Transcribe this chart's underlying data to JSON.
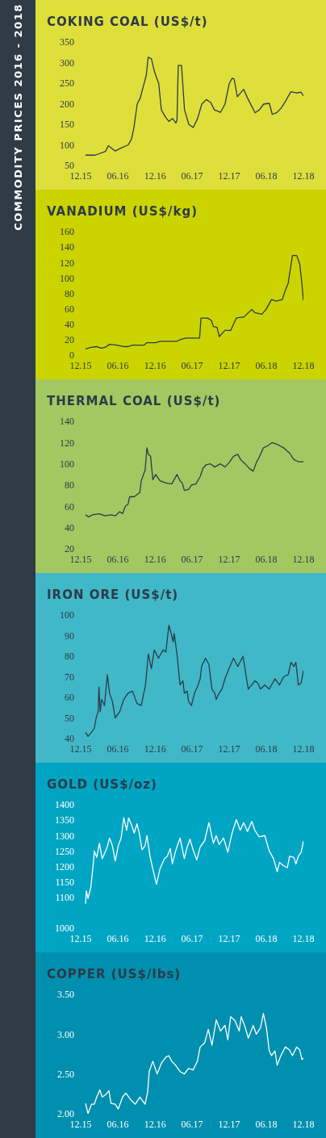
{
  "chart_data": [
    {
      "type": "other",
      "title": "COMMODITY PRICES 2016 - 2018"
    },
    {
      "type": "line",
      "title": "COKING COAL (US$/t)",
      "x": [
        "2015-12-25",
        "2016-02-10",
        "2016-04-01",
        "2016-04-15",
        "2016-05-19",
        "2016-06-10",
        "2016-07-22",
        "2016-08-07",
        "2016-08-19",
        "2016-09-04",
        "2016-09-19",
        "2016-10-04",
        "2016-10-19",
        "2016-10-28",
        "2016-11-13",
        "2016-11-28",
        "2016-12-19",
        "2017-01-01",
        "2017-01-22",
        "2017-02-07",
        "2017-02-25",
        "2017-03-13",
        "2017-03-19",
        "2017-03-25",
        "2017-04-10",
        "2017-04-25",
        "2017-05-16",
        "2017-06-07",
        "2017-06-28",
        "2017-07-19",
        "2017-08-10",
        "2017-09-01",
        "2017-09-19",
        "2017-10-19",
        "2017-11-10",
        "2017-12-01",
        "2017-12-16",
        "2017-12-25",
        "2018-01-10",
        "2018-02-10",
        "2018-03-01",
        "2018-04-07",
        "2018-04-28",
        "2018-05-19",
        "2018-06-16",
        "2018-07-01",
        "2018-07-22",
        "2018-08-13",
        "2018-09-04",
        "2018-09-16",
        "2018-10-01",
        "2018-10-28",
        "2018-11-19",
        "2018-12-01"
      ],
      "series": [
        {
          "color": "#2e3a48",
          "values": [
            75,
            75,
            84,
            98,
            85,
            91,
            100,
            114,
            142,
            199,
            214,
            242,
            270,
            313,
            309,
            278,
            249,
            185,
            167,
            157,
            164,
            153,
            160,
            293,
            293,
            185,
            150,
            142,
            164,
            199,
            210,
            203,
            185,
            179,
            199,
            249,
            262,
            260,
            217,
            235,
            214,
            178,
            185,
            199,
            201,
            174,
            178,
            189,
            206,
            217,
            229,
            226,
            228,
            219
          ]
        }
      ],
      "xlim": [
        "2015-12",
        "2018-12"
      ],
      "xticks": [
        {
          "value": "2015-12",
          "label": "12.15"
        },
        {
          "value": "2016-06",
          "label": "06.16"
        },
        {
          "value": "2016-12",
          "label": "12.16"
        },
        {
          "value": "2017-06",
          "label": "06.17"
        },
        {
          "value": "2017-12",
          "label": "12.17"
        },
        {
          "value": "2018-06",
          "label": "06.18"
        },
        {
          "value": "2018-12",
          "label": "12.18"
        }
      ],
      "ylim": [
        50,
        350
      ],
      "yticks": [
        50,
        100,
        150,
        200,
        250,
        300,
        350
      ]
    },
    {
      "type": "line",
      "title": "VANADIUM (US$/kg)",
      "x": [
        "2015-12-25",
        "2016-01-20",
        "2016-02-18",
        "2016-03-09",
        "2016-03-30",
        "2016-04-21",
        "2016-05-26",
        "2016-06-30",
        "2016-07-21",
        "2016-08-12",
        "2016-10-08",
        "2016-10-22",
        "2016-12-04",
        "2016-12-25",
        "2017-03-19",
        "2017-04-03",
        "2017-05-01",
        "2017-07-08",
        "2017-07-15",
        "2017-08-16",
        "2017-09-04",
        "2017-09-14",
        "2017-10-02",
        "2017-10-13",
        "2017-11-10",
        "2017-12-08",
        "2018-01-05",
        "2018-01-26",
        "2018-02-10",
        "2018-03-01",
        "2018-03-22",
        "2018-04-06",
        "2018-05-11",
        "2018-06-02",
        "2018-06-27",
        "2018-07-21",
        "2018-08-19",
        "2018-09-03",
        "2018-09-17",
        "2018-10-08",
        "2018-10-29",
        "2018-11-13",
        "2018-11-24",
        "2018-12-01"
      ],
      "series": [
        {
          "color": "#2e3a48",
          "values": [
            8,
            10,
            11,
            9,
            10,
            14,
            13,
            11,
            11,
            13,
            13,
            16,
            16,
            18,
            18,
            20,
            22,
            22,
            48,
            48,
            45,
            37,
            36,
            24,
            32,
            32,
            48,
            49,
            49,
            54,
            59,
            55,
            53,
            60,
            72,
            70,
            72,
            84,
            93,
            129,
            129,
            118,
            92,
            71
          ]
        }
      ],
      "xlim": [
        "2015-12",
        "2018-12"
      ],
      "xticks": [
        {
          "value": "2015-12",
          "label": "12.15"
        },
        {
          "value": "2016-06",
          "label": "06.16"
        },
        {
          "value": "2016-12",
          "label": "12.16"
        },
        {
          "value": "2017-06",
          "label": "06.17"
        },
        {
          "value": "2017-12",
          "label": "12.17"
        },
        {
          "value": "2018-06",
          "label": "06.18"
        },
        {
          "value": "2018-12",
          "label": "12.18"
        }
      ],
      "ylim": [
        0,
        160
      ],
      "yticks": [
        0,
        20,
        40,
        60,
        80,
        100,
        120,
        140,
        160
      ]
    },
    {
      "type": "line",
      "title": "THERMAL COAL (US$/t)",
      "x": [
        "2015-12-25",
        "2016-01-09",
        "2016-01-27",
        "2016-03-02",
        "2016-03-30",
        "2016-04-28",
        "2016-05-19",
        "2016-06-10",
        "2016-06-24",
        "2016-07-08",
        "2016-07-21",
        "2016-07-29",
        "2016-08-20",
        "2016-09-17",
        "2016-09-24",
        "2016-10-13",
        "2016-10-22",
        "2016-10-29",
        "2016-11-09",
        "2016-11-20",
        "2016-12-04",
        "2016-12-25",
        "2017-01-23",
        "2017-02-21",
        "2017-03-19",
        "2017-04-03",
        "2017-04-14",
        "2017-04-24",
        "2017-05-15",
        "2017-05-29",
        "2017-06-20",
        "2017-07-11",
        "2017-07-25",
        "2017-08-09",
        "2017-08-30",
        "2017-09-21",
        "2017-10-19",
        "2017-11-10",
        "2017-11-30",
        "2017-12-22",
        "2018-01-12",
        "2018-01-26",
        "2018-02-17",
        "2018-03-08",
        "2018-03-29",
        "2018-04-13",
        "2018-04-27",
        "2018-05-18",
        "2018-06-09",
        "2018-06-30",
        "2018-07-28",
        "2018-08-26",
        "2018-09-24",
        "2018-10-15",
        "2018-11-06",
        "2018-12-01"
      ],
      "series": [
        {
          "color": "#2e3a48",
          "values": [
            52,
            50,
            52,
            53,
            51,
            52,
            51,
            55,
            53,
            60,
            62,
            69,
            69,
            73,
            84,
            94,
            115,
            109,
            107,
            85,
            90,
            84,
            82,
            81,
            90,
            84,
            82,
            75,
            76,
            80,
            81,
            88,
            96,
            99,
            100,
            97,
            100,
            97,
            101,
            107,
            109,
            104,
            100,
            96,
            93,
            101,
            106,
            115,
            117,
            120,
            118,
            115,
            110,
            104,
            102,
            102
          ]
        }
      ],
      "xlim": [
        "2015-12",
        "2018-12"
      ],
      "xticks": [
        {
          "value": "2015-12",
          "label": "12.15"
        },
        {
          "value": "2016-06",
          "label": "06.16"
        },
        {
          "value": "2016-12",
          "label": "12.16"
        },
        {
          "value": "2017-06",
          "label": "06.17"
        },
        {
          "value": "2017-12",
          "label": "12.17"
        },
        {
          "value": "2018-06",
          "label": "06.18"
        },
        {
          "value": "2018-12",
          "label": "12.18"
        }
      ],
      "ylim": [
        20,
        140
      ],
      "yticks": [
        20,
        40,
        60,
        80,
        100,
        120,
        140
      ]
    },
    {
      "type": "line",
      "title": "IRON ORE (US$/t)",
      "x": [
        "2015-12-25",
        "2016-01-06",
        "2016-01-23",
        "2016-02-06",
        "2016-02-15",
        "2016-02-25",
        "2016-02-29",
        "2016-03-06",
        "2016-03-13",
        "2016-03-27",
        "2016-04-10",
        "2016-04-21",
        "2016-05-05",
        "2016-05-19",
        "2016-06-10",
        "2016-06-30",
        "2016-07-21",
        "2016-08-12",
        "2016-09-03",
        "2016-09-24",
        "2016-10-15",
        "2016-10-29",
        "2016-11-13",
        "2016-11-27",
        "2016-12-18",
        "2017-01-09",
        "2017-01-23",
        "2017-02-07",
        "2017-02-21",
        "2017-02-28",
        "2017-03-05",
        "2017-03-19",
        "2017-04-03",
        "2017-04-17",
        "2017-04-24",
        "2017-05-08",
        "2017-05-15",
        "2017-05-29",
        "2017-06-13",
        "2017-06-27",
        "2017-07-11",
        "2017-07-18",
        "2017-08-06",
        "2017-08-23",
        "2017-09-07",
        "2017-09-21",
        "2017-09-28",
        "2017-10-12",
        "2017-10-26",
        "2017-11-10",
        "2017-11-30",
        "2017-12-22",
        "2018-01-12",
        "2018-02-07",
        "2018-02-24",
        "2018-03-05",
        "2018-03-22",
        "2018-04-06",
        "2018-04-20",
        "2018-05-04",
        "2018-05-25",
        "2018-06-16",
        "2018-07-14",
        "2018-08-05",
        "2018-08-26",
        "2018-09-17",
        "2018-10-01",
        "2018-10-15",
        "2018-10-25",
        "2018-11-06",
        "2018-11-20",
        "2018-12-01"
      ],
      "series": [
        {
          "color": "#2e3a48",
          "values": [
            43,
            41,
            43,
            45,
            50,
            53,
            65,
            53,
            59,
            56,
            71,
            62,
            58,
            50,
            53,
            59,
            62,
            63,
            57,
            56,
            66,
            81,
            74,
            83,
            79,
            83,
            82,
            95,
            90,
            87,
            91,
            81,
            66,
            68,
            62,
            63,
            58,
            56,
            62,
            65,
            69,
            75,
            79,
            76,
            64,
            62,
            59,
            62,
            64,
            69,
            74,
            79,
            75,
            80,
            69,
            64,
            66,
            68,
            67,
            64,
            66,
            64,
            69,
            66,
            70,
            71,
            77,
            75,
            77,
            66,
            67,
            73
          ]
        }
      ],
      "xlim": [
        "2015-12",
        "2018-12"
      ],
      "xticks": [
        {
          "value": "2015-12",
          "label": "12.15"
        },
        {
          "value": "2016-06",
          "label": "06.16"
        },
        {
          "value": "2016-12",
          "label": "12.16"
        },
        {
          "value": "2017-06",
          "label": "06.17"
        },
        {
          "value": "2017-12",
          "label": "12.17"
        },
        {
          "value": "2018-06",
          "label": "06.18"
        },
        {
          "value": "2018-12",
          "label": "12.18"
        }
      ],
      "ylim": [
        40,
        100
      ],
      "yticks": [
        40,
        50,
        60,
        70,
        80,
        90,
        100
      ]
    },
    {
      "type": "line",
      "title": "GOLD (US$/oz)",
      "x": [
        "2015-12-25",
        "2015-12-29",
        "2016-01-06",
        "2016-01-20",
        "2016-02-01",
        "2016-02-06",
        "2016-02-18",
        "2016-03-02",
        "2016-03-16",
        "2016-04-07",
        "2016-04-21",
        "2016-05-05",
        "2016-05-19",
        "2016-06-03",
        "2016-06-17",
        "2016-06-30",
        "2016-07-14",
        "2016-07-24",
        "2016-08-08",
        "2016-08-20",
        "2016-09-03",
        "2016-09-14",
        "2016-09-28",
        "2016-10-13",
        "2016-10-22",
        "2016-11-06",
        "2016-11-20",
        "2016-12-08",
        "2016-12-25",
        "2017-01-16",
        "2017-01-30",
        "2017-02-14",
        "2017-02-24",
        "2017-03-12",
        "2017-04-03",
        "2017-04-24",
        "2017-05-08",
        "2017-05-22",
        "2017-06-06",
        "2017-06-24",
        "2017-07-11",
        "2017-08-02",
        "2017-08-23",
        "2017-09-14",
        "2017-09-28",
        "2017-10-12",
        "2017-11-03",
        "2017-11-24",
        "2017-12-15",
        "2018-01-05",
        "2018-01-24",
        "2018-02-10",
        "2018-03-01",
        "2018-03-22",
        "2018-04-06",
        "2018-04-27",
        "2018-05-25",
        "2018-06-16",
        "2018-07-07",
        "2018-07-25",
        "2018-08-05",
        "2018-08-26",
        "2018-09-13",
        "2018-09-24",
        "2018-10-15",
        "2018-10-25",
        "2018-11-06",
        "2018-11-20",
        "2018-12-01"
      ],
      "series": [
        {
          "color": "#ffffff",
          "values": [
            1079,
            1121,
            1096,
            1133,
            1208,
            1250,
            1229,
            1275,
            1225,
            1258,
            1292,
            1267,
            1217,
            1267,
            1292,
            1358,
            1317,
            1357,
            1333,
            1308,
            1338,
            1308,
            1254,
            1267,
            1300,
            1233,
            1192,
            1142,
            1192,
            1225,
            1233,
            1258,
            1208,
            1250,
            1292,
            1225,
            1263,
            1288,
            1254,
            1221,
            1263,
            1283,
            1342,
            1275,
            1300,
            1271,
            1292,
            1246,
            1308,
            1352,
            1317,
            1342,
            1313,
            1346,
            1317,
            1296,
            1300,
            1250,
            1225,
            1183,
            1213,
            1202,
            1196,
            1233,
            1229,
            1208,
            1233,
            1246,
            1282
          ]
        }
      ],
      "xlim": [
        "2015-12",
        "2018-12"
      ],
      "xticks": [
        {
          "value": "2015-12",
          "label": "12.15"
        },
        {
          "value": "2016-06",
          "label": "06.16"
        },
        {
          "value": "2016-12",
          "label": "12.16"
        },
        {
          "value": "2017-06",
          "label": "06.17"
        },
        {
          "value": "2017-12",
          "label": "12.17"
        },
        {
          "value": "2018-06",
          "label": "06.18"
        },
        {
          "value": "2018-12",
          "label": "12.18"
        }
      ],
      "ylim": [
        1000,
        1400
      ],
      "yticks": [
        1000,
        1100,
        1150,
        1200,
        1250,
        1300,
        1350,
        1400
      ]
    },
    {
      "type": "line",
      "title": "COPPER (US$/lbs)",
      "x": [
        "2015-12-25",
        "2016-01-06",
        "2016-01-23",
        "2016-02-06",
        "2016-02-18",
        "2016-03-04",
        "2016-03-16",
        "2016-04-02",
        "2016-04-18",
        "2016-04-28",
        "2016-05-19",
        "2016-06-03",
        "2016-06-24",
        "2016-07-10",
        "2016-08-05",
        "2016-08-26",
        "2016-09-17",
        "2016-10-13",
        "2016-10-26",
        "2016-11-02",
        "2016-11-20",
        "2016-12-11",
        "2017-01-02",
        "2017-01-23",
        "2017-02-07",
        "2017-02-21",
        "2017-03-12",
        "2017-04-03",
        "2017-04-24",
        "2017-05-15",
        "2017-06-06",
        "2017-06-27",
        "2017-07-11",
        "2017-08-02",
        "2017-08-20",
        "2017-09-07",
        "2017-09-28",
        "2017-10-19",
        "2017-11-10",
        "2017-11-24",
        "2017-12-08",
        "2017-12-29",
        "2018-01-19",
        "2018-01-29",
        "2018-02-17",
        "2018-03-05",
        "2018-03-29",
        "2018-04-13",
        "2018-05-04",
        "2018-05-18",
        "2018-06-02",
        "2018-06-16",
        "2018-06-27",
        "2018-07-14",
        "2018-07-25",
        "2018-08-12",
        "2018-09-03",
        "2018-09-24",
        "2018-10-08",
        "2018-10-29",
        "2018-11-13",
        "2018-11-24",
        "2018-12-01"
      ],
      "series": [
        {
          "color": "#ffffff",
          "values": [
            2.13,
            2.0,
            2.12,
            2.12,
            2.21,
            2.3,
            2.21,
            2.24,
            2.29,
            2.13,
            2.12,
            2.06,
            2.21,
            2.26,
            2.17,
            2.12,
            2.21,
            2.12,
            2.28,
            2.53,
            2.66,
            2.5,
            2.64,
            2.71,
            2.73,
            2.66,
            2.61,
            2.53,
            2.5,
            2.57,
            2.55,
            2.66,
            2.84,
            2.89,
            3.06,
            2.86,
            3.18,
            3.04,
            3.11,
            2.93,
            3.22,
            3.17,
            3.04,
            3.22,
            3.09,
            2.95,
            3.11,
            3.0,
            3.08,
            3.26,
            3.08,
            2.79,
            2.73,
            2.79,
            2.61,
            2.73,
            2.84,
            2.8,
            2.73,
            2.84,
            2.8,
            2.68,
            2.7
          ]
        }
      ],
      "xlim": [
        "2015-12",
        "2018-12"
      ],
      "xticks": [
        {
          "value": "2015-12",
          "label": "12.15"
        },
        {
          "value": "2016-06",
          "label": "06.16"
        },
        {
          "value": "2016-12",
          "label": "12.16"
        },
        {
          "value": "2017-06",
          "label": "06.17"
        },
        {
          "value": "2017-12",
          "label": "12.17"
        },
        {
          "value": "2018-06",
          "label": "06.18"
        },
        {
          "value": "2018-12",
          "label": "12.18"
        }
      ],
      "ylim": [
        2,
        3.5
      ],
      "yticks": [
        {
          "value": 2,
          "label": "2.00"
        },
        {
          "value": 2.5,
          "label": "2.50"
        },
        {
          "value": 3,
          "label": "3.00"
        },
        {
          "value": 3.5,
          "label": "3.50"
        }
      ]
    }
  ]
}
